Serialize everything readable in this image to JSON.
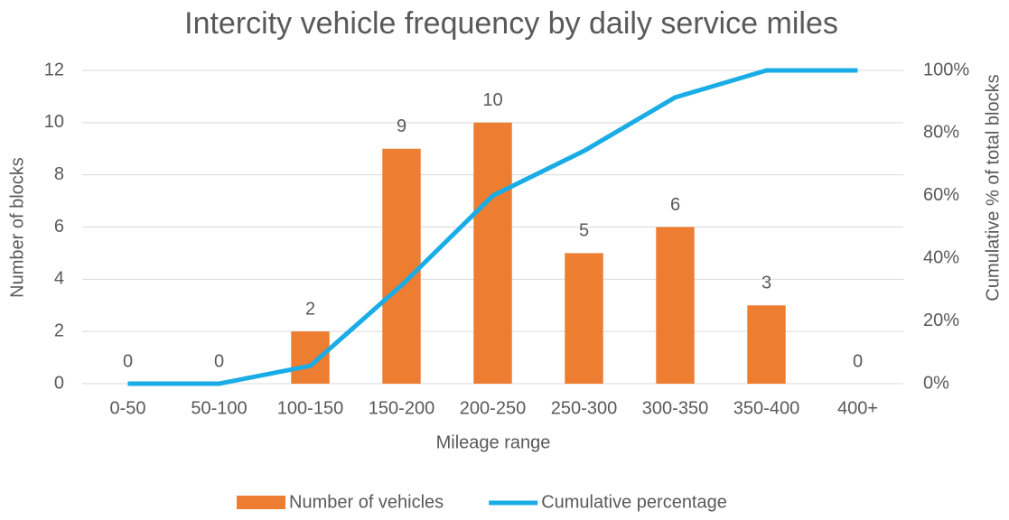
{
  "chart_data": {
    "type": "bar",
    "title": "Intercity vehicle frequency by daily service miles",
    "x_label": "Mileage range",
    "y_label": "Number of blocks",
    "y2_label": "Cumulative % of total blocks",
    "categories": [
      "0-50",
      "50-100",
      "100-150",
      "150-200",
      "200-250",
      "250-300",
      "300-350",
      "350-400",
      "400+"
    ],
    "series": [
      {
        "name": "Number of vehicles",
        "type": "bar",
        "color": "#ed7d31",
        "values": [
          0,
          0,
          2,
          9,
          10,
          5,
          6,
          3,
          0
        ]
      },
      {
        "name": "Cumulative percentage",
        "type": "line",
        "axis": "y2",
        "color": "#1aace6",
        "values": [
          0,
          0,
          5.7,
          31.4,
          60,
          74.3,
          91.4,
          100,
          100
        ]
      }
    ],
    "ylim": [
      0,
      12
    ],
    "yticks": [
      0,
      2,
      4,
      6,
      8,
      10,
      12
    ],
    "y2lim": [
      0,
      100
    ],
    "y2ticks": [
      {
        "value": 0,
        "label": "0%"
      },
      {
        "value": 20,
        "label": "20%"
      },
      {
        "value": 40,
        "label": "40%"
      },
      {
        "value": 60,
        "label": "60%"
      },
      {
        "value": 80,
        "label": "80%"
      },
      {
        "value": 100,
        "label": "100%"
      }
    ],
    "grid": true,
    "legend": "bottom"
  }
}
